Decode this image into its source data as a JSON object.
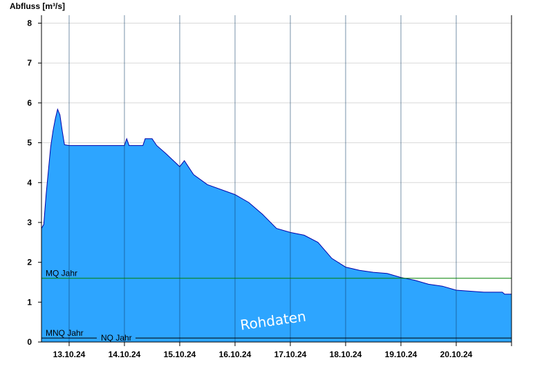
{
  "chart_data": {
    "type": "area",
    "ylabel": "Abfluss [m³/s]",
    "ylim": [
      0,
      8.2
    ],
    "yticks": [
      0,
      1,
      2,
      3,
      4,
      5,
      6,
      7,
      8
    ],
    "xlim": [
      "2024-10-12T12:00",
      "2024-10-20T24:00"
    ],
    "xtick_labels": [
      "13.10.24",
      "14.10.24",
      "15.10.24",
      "16.10.24",
      "17.10.24",
      "18.10.24",
      "19.10.24",
      "20.10.24"
    ],
    "series": [
      {
        "values": [
          [
            "2024-10-12T12:00",
            2.85
          ],
          [
            "2024-10-12T13:00",
            2.95
          ],
          [
            "2024-10-12T14:00",
            3.7
          ],
          [
            "2024-10-12T15:00",
            4.3
          ],
          [
            "2024-10-12T16:00",
            4.9
          ],
          [
            "2024-10-12T17:00",
            5.3
          ],
          [
            "2024-10-12T18:00",
            5.6
          ],
          [
            "2024-10-12T19:00",
            5.84
          ],
          [
            "2024-10-12T20:00",
            5.7
          ],
          [
            "2024-10-12T21:00",
            5.3
          ],
          [
            "2024-10-12T22:00",
            4.95
          ],
          [
            "2024-10-13T00:00",
            4.93
          ],
          [
            "2024-10-13T12:00",
            4.93
          ],
          [
            "2024-10-14T00:00",
            4.93
          ],
          [
            "2024-10-14T01:00",
            5.1
          ],
          [
            "2024-10-14T02:00",
            4.93
          ],
          [
            "2024-10-14T08:00",
            4.93
          ],
          [
            "2024-10-14T09:00",
            5.1
          ],
          [
            "2024-10-14T12:00",
            5.1
          ],
          [
            "2024-10-14T14:00",
            4.93
          ],
          [
            "2024-10-14T18:00",
            4.73
          ],
          [
            "2024-10-15T00:00",
            4.4
          ],
          [
            "2024-10-15T02:00",
            4.55
          ],
          [
            "2024-10-15T06:00",
            4.2
          ],
          [
            "2024-10-15T12:00",
            3.95
          ],
          [
            "2024-10-16T00:00",
            3.7
          ],
          [
            "2024-10-16T06:00",
            3.5
          ],
          [
            "2024-10-16T12:00",
            3.2
          ],
          [
            "2024-10-16T18:00",
            2.85
          ],
          [
            "2024-10-17T00:00",
            2.75
          ],
          [
            "2024-10-17T06:00",
            2.68
          ],
          [
            "2024-10-17T12:00",
            2.5
          ],
          [
            "2024-10-17T18:00",
            2.1
          ],
          [
            "2024-10-18T00:00",
            1.88
          ],
          [
            "2024-10-18T06:00",
            1.8
          ],
          [
            "2024-10-18T12:00",
            1.75
          ],
          [
            "2024-10-18T18:00",
            1.72
          ],
          [
            "2024-10-19T00:00",
            1.62
          ],
          [
            "2024-10-19T06:00",
            1.55
          ],
          [
            "2024-10-19T12:00",
            1.45
          ],
          [
            "2024-10-19T18:00",
            1.4
          ],
          [
            "2024-10-20T00:00",
            1.3
          ],
          [
            "2024-10-20T12:00",
            1.25
          ],
          [
            "2024-10-20T20:00",
            1.25
          ],
          [
            "2024-10-20T21:00",
            1.2
          ],
          [
            "2024-10-20T24:00",
            1.2
          ]
        ]
      }
    ],
    "reference_lines": [
      {
        "label": "MQ Jahr",
        "value": 1.6,
        "color": "#008000"
      },
      {
        "label": "MNQ Jahr",
        "value": 0.1,
        "color": "#000000"
      },
      {
        "label": "NQ Jahr",
        "value": 0.1,
        "color": "#000000"
      }
    ],
    "annotations": [
      "Rohdaten"
    ],
    "grid": true,
    "colors": {
      "area_fill": "#2da5ff",
      "area_line": "#0000aa",
      "grid": "#d8d8d8"
    }
  }
}
